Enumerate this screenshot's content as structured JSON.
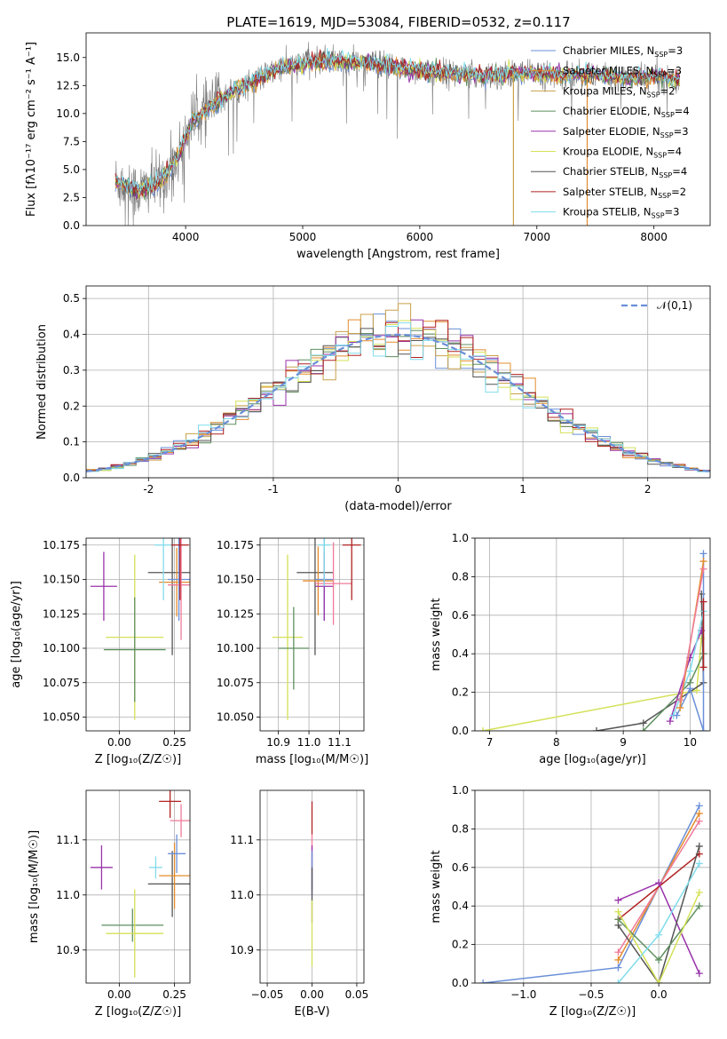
{
  "figure_title": "PLATE=1619, MJD=53084, FIBERID=0532, z=0.117",
  "models": [
    {
      "name": "Chabrier MILES, N_SSP=3",
      "label_main": "Chabrier MILES, N",
      "label_sub": "SSP",
      "label_end": "=3",
      "color": "#6a8fd8"
    },
    {
      "name": "Salpeter MILES, N_SSP=3",
      "label_main": "Salpeter MILES, N",
      "label_sub": "SSP",
      "label_end": "=3",
      "color": "#e38c2d"
    },
    {
      "name": "Kroupa MILES, N_SSP=2",
      "label_main": "Kroupa MILES, N",
      "label_sub": "SSP",
      "label_end": "=2",
      "color": "#c9a04a"
    },
    {
      "name": "Chabrier ELODIE, N_SSP=4",
      "label_main": "Chabrier ELODIE, N",
      "label_sub": "SSP",
      "label_end": "=4",
      "color": "#5f8f5f"
    },
    {
      "name": "Salpeter ELODIE, N_SSP=3",
      "label_main": "Salpeter ELODIE, N",
      "label_sub": "SSP",
      "label_end": "=3",
      "color": "#9933aa"
    },
    {
      "name": "Kroupa ELODIE, N_SSP=4",
      "label_main": "Kroupa ELODIE, N",
      "label_sub": "SSP",
      "label_end": "=4",
      "color": "#d4e157"
    },
    {
      "name": "Chabrier STELIB, N_SSP=4",
      "label_main": "Chabrier STELIB, N",
      "label_sub": "SSP",
      "label_end": "=4",
      "color": "#555555"
    },
    {
      "name": "Salpeter STELIB, N_SSP=2",
      "label_main": "Salpeter STELIB, N",
      "label_sub": "SSP",
      "label_end": "=2",
      "color": "#b22222"
    },
    {
      "name": "Kroupa STELIB, N_SSP=3",
      "label_main": "Kroupa STELIB, N",
      "label_sub": "SSP",
      "label_end": "=3",
      "color": "#80dceb"
    }
  ],
  "extra_color": "#f07a9a",
  "chart_data": [
    {
      "id": "spectrum",
      "type": "line",
      "xlabel": "wavelength [Angstrom, rest frame]",
      "ylabel": "Flux [fλ10⁻¹⁷ erg cm⁻² s⁻¹ A⁻¹]",
      "xlim": [
        3150,
        8480
      ],
      "ylim": [
        0,
        17.2
      ],
      "xticks": [
        4000,
        5000,
        6000,
        7000,
        8000
      ],
      "yticks": [
        0.0,
        2.5,
        5.0,
        7.5,
        10.0,
        12.5,
        15.0
      ],
      "ytick_labels": [
        "0.0",
        "2.5",
        "5.0",
        "7.5",
        "10.0",
        "12.5",
        "15.0"
      ],
      "grid": false,
      "legend": "upper-right",
      "continuum": {
        "x": [
          3400,
          3600,
          3800,
          3950,
          4050,
          4200,
          4400,
          4600,
          4800,
          5000,
          5200,
          5400,
          5600,
          5800,
          6000,
          6200,
          6500,
          6800,
          7000,
          7200,
          7500,
          7800,
          8000,
          8220
        ],
        "y": [
          4.0,
          3.0,
          4.0,
          6.5,
          9.3,
          10.5,
          12.0,
          13.0,
          14.0,
          14.5,
          14.7,
          14.6,
          14.5,
          14.1,
          13.8,
          13.6,
          13.4,
          13.5,
          13.5,
          13.4,
          13.5,
          13.1,
          13.3,
          13.0
        ]
      },
      "wavelength_range": [
        3400,
        8220
      ]
    },
    {
      "id": "residuals",
      "type": "histogram",
      "xlabel": "(data-model)/error",
      "ylabel": "Normed distribution",
      "xlim": [
        -2.5,
        2.5
      ],
      "ylim": [
        0,
        0.535
      ],
      "xticks": [
        -2,
        -1,
        0,
        1,
        2
      ],
      "yticks": [
        0.0,
        0.1,
        0.2,
        0.3,
        0.4,
        0.5
      ],
      "ytick_labels": [
        "0.0",
        "0.1",
        "0.2",
        "0.3",
        "0.4",
        "0.5"
      ],
      "bin_width": 0.1,
      "grid": true,
      "legend": "upper-right",
      "reference_curve": {
        "label": "𝒩(0,1)",
        "color": "#6a8fd8",
        "dash": true
      }
    },
    {
      "id": "age-vs-z",
      "type": "scatter-errorbar",
      "xlabel": "Z [log₁₀(Z/Z☉)]",
      "ylabel": "age  [log₁₀(age/yr)]",
      "xlim": [
        -0.15,
        0.32
      ],
      "ylim": [
        10.04,
        10.18
      ],
      "xticks": [
        0.0,
        0.25
      ],
      "xtick_labels": [
        "0.00",
        "0.25"
      ],
      "yticks": [
        10.05,
        10.075,
        10.1,
        10.125,
        10.15,
        10.175
      ],
      "ytick_labels": [
        "10.050",
        "10.075",
        "10.100",
        "10.125",
        "10.150",
        "10.175"
      ],
      "grid": true,
      "points": [
        {
          "x": -0.07,
          "y": 10.145,
          "xerr": 0.06,
          "yerr": 0.025,
          "color": "#9933aa"
        },
        {
          "x": 0.07,
          "y": 10.108,
          "xerr": 0.13,
          "yerr": 0.06,
          "color": "#d4e157"
        },
        {
          "x": 0.07,
          "y": 10.099,
          "xerr": 0.14,
          "yerr": 0.038,
          "color": "#5f8f5f"
        },
        {
          "x": 0.24,
          "y": 10.155,
          "xerr": 0.11,
          "yerr": 0.06,
          "color": "#555555"
        },
        {
          "x": 0.26,
          "y": 10.148,
          "xerr": 0.08,
          "yerr": 0.025,
          "color": "#e38c2d"
        },
        {
          "x": 0.27,
          "y": 10.15,
          "xerr": 0.05,
          "yerr": 0.03,
          "color": "#6a8fd8"
        },
        {
          "x": 0.28,
          "y": 10.146,
          "xerr": 0.06,
          "yerr": 0.04,
          "color": "#f07a9a"
        },
        {
          "x": 0.2,
          "y": 10.175,
          "xerr": 0.04,
          "yerr": 0.04,
          "color": "#80dceb"
        },
        {
          "x": 0.275,
          "y": 10.175,
          "xerr": 0.04,
          "yerr": 0.04,
          "color": "#b22222"
        }
      ]
    },
    {
      "id": "age-vs-mass",
      "type": "scatter-errorbar",
      "xlabel": "mass [log₁₀(M/M☉)]",
      "ylabel": "",
      "xlim": [
        10.84,
        11.18
      ],
      "ylim": [
        10.04,
        10.18
      ],
      "xticks": [
        10.9,
        11.0,
        11.1
      ],
      "xtick_labels": [
        "10.9",
        "11.0",
        "11.1"
      ],
      "yticks": [
        10.05,
        10.075,
        10.1,
        10.125,
        10.15,
        10.175
      ],
      "ytick_labels": [
        "10.050",
        "10.075",
        "10.100",
        "10.125",
        "10.150",
        "10.175"
      ],
      "grid": true,
      "points": [
        {
          "x": 10.93,
          "y": 10.108,
          "xerr": 0.05,
          "yerr": 0.06,
          "color": "#d4e157"
        },
        {
          "x": 10.95,
          "y": 10.1,
          "xerr": 0.05,
          "yerr": 0.03,
          "color": "#5f8f5f"
        },
        {
          "x": 11.02,
          "y": 10.155,
          "xerr": 0.06,
          "yerr": 0.06,
          "color": "#555555"
        },
        {
          "x": 11.03,
          "y": 10.149,
          "xerr": 0.05,
          "yerr": 0.025,
          "color": "#e38c2d"
        },
        {
          "x": 11.05,
          "y": 10.15,
          "xerr": 0.03,
          "yerr": 0.03,
          "color": "#6a8fd8"
        },
        {
          "x": 11.05,
          "y": 10.145,
          "xerr": 0.03,
          "yerr": 0.025,
          "color": "#9933aa"
        },
        {
          "x": 11.08,
          "y": 10.147,
          "xerr": 0.06,
          "yerr": 0.03,
          "color": "#f07a9a"
        },
        {
          "x": 11.05,
          "y": 10.175,
          "xerr": 0.02,
          "yerr": 0.03,
          "color": "#80dceb"
        },
        {
          "x": 11.14,
          "y": 10.175,
          "xerr": 0.03,
          "yerr": 0.04,
          "color": "#b22222"
        }
      ]
    },
    {
      "id": "weight-vs-age",
      "type": "line",
      "xlabel": "age  [log₁₀(age/yr)]",
      "ylabel": "mass weight",
      "xlim": [
        6.78,
        10.3
      ],
      "ylim": [
        0,
        1.0
      ],
      "xticks": [
        7,
        8,
        9,
        10
      ],
      "yticks": [
        0.0,
        0.2,
        0.4,
        0.6,
        0.8,
        1.0
      ],
      "ytick_labels": [
        "0.0",
        "0.2",
        "0.4",
        "0.6",
        "0.8",
        "1.0"
      ],
      "grid": true,
      "series": [
        {
          "color": "#d4e157",
          "x": [
            6.9,
            10.1,
            10.17
          ],
          "y": [
            0.0,
            0.21,
            0.48
          ]
        },
        {
          "color": "#555555",
          "x": [
            8.6,
            9.3,
            10.2,
            10.17
          ],
          "y": [
            0.0,
            0.04,
            0.25,
            0.71
          ]
        },
        {
          "color": "#5f8f5f",
          "x": [
            9.3,
            10.0,
            10.2
          ],
          "y": [
            0.0,
            0.25,
            0.4
          ]
        },
        {
          "color": "#9933aa",
          "x": [
            9.7,
            10.0,
            10.17
          ],
          "y": [
            0.05,
            0.38,
            0.52
          ]
        },
        {
          "color": "#80dceb",
          "x": [
            9.75,
            10.0,
            10.2
          ],
          "y": [
            0.08,
            0.31,
            0.62
          ]
        },
        {
          "color": "#6a8fd8",
          "x": [
            9.8,
            10.0,
            10.2,
            10.2
          ],
          "y": [
            0.08,
            0.22,
            0.0,
            0.92
          ]
        },
        {
          "color": "#e38c2d",
          "x": [
            9.85,
            10.2
          ],
          "y": [
            0.12,
            0.88
          ]
        },
        {
          "color": "#f07a9a",
          "x": [
            9.85,
            10.2
          ],
          "y": [
            0.16,
            0.84
          ]
        },
        {
          "color": "#b22222",
          "x": [
            10.2,
            10.2
          ],
          "y": [
            0.33,
            0.67
          ]
        }
      ]
    },
    {
      "id": "mass-vs-z",
      "type": "scatter-errorbar",
      "xlabel": "Z [log₁₀(Z/Z☉)]",
      "ylabel": "mass [log₁₀(M/M☉)]",
      "xlim": [
        -0.15,
        0.32
      ],
      "ylim": [
        10.84,
        11.19
      ],
      "xticks": [
        0.0,
        0.25
      ],
      "xtick_labels": [
        "0.00",
        "0.25"
      ],
      "yticks": [
        10.9,
        11.0,
        11.1
      ],
      "ytick_labels": [
        "10.9",
        "11.0",
        "11.1"
      ],
      "grid": true,
      "points": [
        {
          "x": -0.08,
          "y": 11.05,
          "xerr": 0.05,
          "yerr": 0.04,
          "color": "#9933aa"
        },
        {
          "x": 0.06,
          "y": 10.945,
          "xerr": 0.14,
          "yerr": 0.03,
          "color": "#5f8f5f"
        },
        {
          "x": 0.07,
          "y": 10.93,
          "xerr": 0.13,
          "yerr": 0.08,
          "color": "#d4e157"
        },
        {
          "x": 0.165,
          "y": 11.05,
          "xerr": 0.03,
          "yerr": 0.02,
          "color": "#80dceb"
        },
        {
          "x": 0.24,
          "y": 11.02,
          "xerr": 0.11,
          "yerr": 0.06,
          "color": "#555555"
        },
        {
          "x": 0.25,
          "y": 11.035,
          "xerr": 0.07,
          "yerr": 0.06,
          "color": "#e38c2d"
        },
        {
          "x": 0.26,
          "y": 11.075,
          "xerr": 0.04,
          "yerr": 0.035,
          "color": "#6a8fd8"
        },
        {
          "x": 0.28,
          "y": 11.135,
          "xerr": 0.05,
          "yerr": 0.03,
          "color": "#f07a9a"
        },
        {
          "x": 0.23,
          "y": 11.17,
          "xerr": 0.05,
          "yerr": 0.03,
          "color": "#b22222"
        }
      ]
    },
    {
      "id": "mass-vs-ebv",
      "type": "scatter-errorbar",
      "xlabel": "E(B-V)",
      "ylabel": "",
      "xlim": [
        -0.058,
        0.058
      ],
      "ylim": [
        10.84,
        11.19
      ],
      "xticks": [
        -0.05,
        0.0,
        0.05
      ],
      "xtick_labels": [
        "−0.05",
        "0.00",
        "0.05"
      ],
      "yticks": [
        10.9,
        11.0,
        11.1
      ],
      "ytick_labels": [
        "10.9",
        "11.0",
        "11.1"
      ],
      "grid": true,
      "points": [
        {
          "x": 0.0,
          "y": 11.14,
          "xerr": 0.0,
          "yerr": 0.03,
          "color": "#b22222"
        },
        {
          "x": 0.0,
          "y": 11.08,
          "xerr": 0.0,
          "yerr": 0.03,
          "color": "#f07a9a"
        },
        {
          "x": 0.0,
          "y": 11.05,
          "xerr": 0.0,
          "yerr": 0.04,
          "color": "#9933aa"
        },
        {
          "x": 0.0,
          "y": 11.04,
          "xerr": 0.0,
          "yerr": 0.04,
          "color": "#6a8fd8"
        },
        {
          "x": 0.0,
          "y": 11.0,
          "xerr": 0.0,
          "yerr": 0.05,
          "color": "#555555"
        },
        {
          "x": 0.0,
          "y": 10.93,
          "xerr": 0.0,
          "yerr": 0.06,
          "color": "#d4e157"
        }
      ]
    },
    {
      "id": "weight-vs-z",
      "type": "line",
      "xlabel": "Z [log₁₀(Z/Z☉)]",
      "ylabel": "mass weight",
      "xlim": [
        -1.36,
        0.38
      ],
      "ylim": [
        0,
        1.0
      ],
      "xticks": [
        -1.0,
        -0.5,
        0.0
      ],
      "xtick_labels": [
        "−1.0",
        "−0.5",
        "0.0"
      ],
      "yticks": [
        0.0,
        0.2,
        0.4,
        0.6,
        0.8,
        1.0
      ],
      "ytick_labels": [
        "0.0",
        "0.2",
        "0.4",
        "0.6",
        "0.8",
        "1.0"
      ],
      "grid": true,
      "series": [
        {
          "color": "#6a8fd8",
          "x": [
            -1.3,
            -0.3,
            0.3
          ],
          "y": [
            0.0,
            0.08,
            0.92
          ]
        },
        {
          "color": "#e38c2d",
          "x": [
            -0.3,
            0.3
          ],
          "y": [
            0.12,
            0.88
          ]
        },
        {
          "color": "#f07a9a",
          "x": [
            -0.3,
            0.3
          ],
          "y": [
            0.16,
            0.84
          ]
        },
        {
          "color": "#b22222",
          "x": [
            -0.3,
            0.3
          ],
          "y": [
            0.33,
            0.67
          ]
        },
        {
          "color": "#9933aa",
          "x": [
            -0.3,
            0.0,
            0.3
          ],
          "y": [
            0.43,
            0.52,
            0.05
          ]
        },
        {
          "color": "#555555",
          "x": [
            -0.3,
            0.0,
            0.3
          ],
          "y": [
            0.3,
            0.0,
            0.71
          ]
        },
        {
          "color": "#5f8f5f",
          "x": [
            -0.3,
            0.0,
            0.3
          ],
          "y": [
            0.33,
            0.12,
            0.4
          ]
        },
        {
          "color": "#d4e157",
          "x": [
            -0.3,
            0.0,
            0.3
          ],
          "y": [
            0.37,
            0.0,
            0.47
          ]
        },
        {
          "color": "#80dceb",
          "x": [
            -0.3,
            0.0,
            0.3
          ],
          "y": [
            0.0,
            0.25,
            0.62
          ]
        }
      ]
    }
  ]
}
